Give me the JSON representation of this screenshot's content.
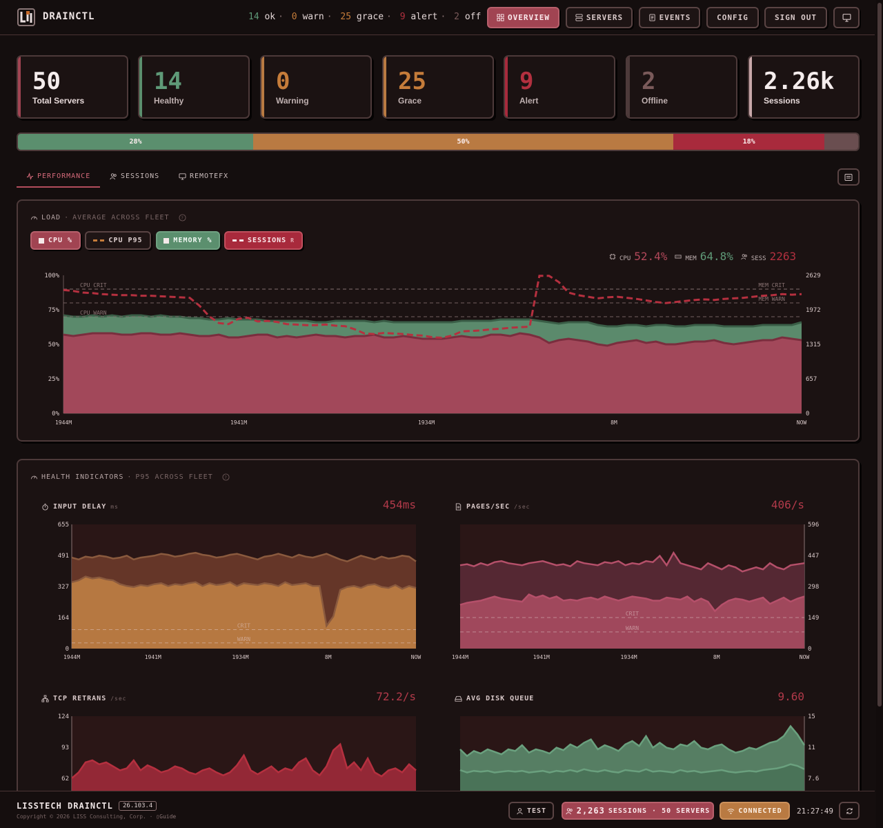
{
  "app": {
    "brand": "DRAINCTL"
  },
  "header": {
    "status": {
      "ok_count": "14",
      "ok_label": "ok",
      "warn_count": "0",
      "warn_label": "warn",
      "grace_count": "25",
      "grace_label": "grace",
      "alert_count": "9",
      "alert_label": "alert",
      "off_count": "2",
      "off_label": "off"
    },
    "nav": {
      "overview": "OVERVIEW",
      "servers": "SERVERS",
      "events": "EVENTS",
      "config": "CONFIG",
      "signout": "SIGN OUT"
    }
  },
  "stats": [
    {
      "value": "50",
      "label": "Total Servers"
    },
    {
      "value": "14",
      "label": "Healthy"
    },
    {
      "value": "0",
      "label": "Warning"
    },
    {
      "value": "25",
      "label": "Grace"
    },
    {
      "value": "9",
      "label": "Alert"
    },
    {
      "value": "2",
      "label": "Offline"
    },
    {
      "value": "2.26k",
      "label": "Sessions"
    }
  ],
  "distribution": [
    {
      "label": "28%",
      "fraction": 0.28,
      "color": "#5b8f6e"
    },
    {
      "label": "50%",
      "fraction": 0.5,
      "color": "#b97a42"
    },
    {
      "label": "18%",
      "fraction": 0.18,
      "color": "#a82a3c"
    },
    {
      "label": "",
      "fraction": 0.04,
      "color": "#6a4e50"
    }
  ],
  "tabs": {
    "performance": "PERFORMANCE",
    "sessions": "SESSIONS",
    "remotefx": "REMOTEFX"
  },
  "load_panel": {
    "title": "LOAD",
    "subtitle": "AVERAGE ACROSS FLEET",
    "chips": {
      "cpu": "CPU %",
      "cpu_p95": "CPU P95",
      "memory": "MEMORY %",
      "sessions": "SESSIONS",
      "sessions_suffix": "R"
    },
    "readout": {
      "cpu_label": "CPU",
      "cpu_value": "52.4%",
      "mem_label": "MEM",
      "mem_value": "64.8%",
      "sess_label": "SESS",
      "sess_value": "2263"
    },
    "threshold_labels": {
      "cpu_crit": "CPU CRIT",
      "cpu_warn": "CPU WARN",
      "mem_crit": "MEM CRIT",
      "mem_warn": "MEM WARN"
    }
  },
  "health_panel": {
    "title": "HEALTH INDICATORS",
    "subtitle": "P95 ACROSS FLEET"
  },
  "minis": {
    "input_delay": {
      "title": "INPUT DELAY",
      "unit": "ms",
      "value": "454ms"
    },
    "pages": {
      "title": "PAGES/SEC",
      "unit": "/sec",
      "value": "406/s"
    },
    "tcp": {
      "title": "TCP RETRANS",
      "unit": "/sec",
      "value": "72.2/s"
    },
    "disk": {
      "title": "AVG DISK QUEUE",
      "unit": "",
      "value": "9.60"
    }
  },
  "chart_data": [
    {
      "type": "area",
      "name": "load",
      "x_ticks": [
        "1944M",
        "1941M",
        "1934M",
        "8M",
        "NOW"
      ],
      "y_left_ticks": [
        "100%",
        "75%",
        "50%",
        "25%",
        "0%"
      ],
      "y_right_ticks": [
        "2629",
        "1972",
        "1315",
        "657",
        "0"
      ],
      "ylim_left": [
        0,
        100
      ],
      "ylim_right": [
        0,
        2629
      ],
      "thresholds": {
        "cpu_crit": 90,
        "cpu_warn": 70,
        "mem_crit": 90,
        "mem_warn": 80
      },
      "series": [
        {
          "name": "CPU %",
          "axis": "left",
          "color": "#a2485a",
          "values": [
            57,
            56,
            57,
            58,
            58,
            58,
            57,
            57,
            58,
            58,
            57,
            57,
            58,
            57,
            56,
            56,
            57,
            55,
            55,
            56,
            57,
            57,
            55,
            56,
            55,
            56,
            57,
            56,
            56,
            55,
            56,
            56,
            57,
            55,
            55,
            56,
            55,
            54,
            54,
            54,
            55,
            56,
            55,
            55,
            57,
            57,
            56,
            58,
            57,
            55,
            51,
            53,
            54,
            53,
            52,
            50,
            49,
            51,
            52,
            53,
            51,
            52,
            50,
            50,
            51,
            52,
            52,
            53,
            51,
            50,
            51,
            52,
            53,
            53,
            55,
            54,
            53
          ]
        },
        {
          "name": "MEMORY %",
          "axis": "left",
          "color": "#5b8a6c",
          "values": [
            70,
            69,
            69,
            70,
            69,
            70,
            69,
            70,
            70,
            69,
            70,
            69,
            69,
            68,
            68,
            66,
            66,
            68,
            67,
            67,
            67,
            66,
            66,
            66,
            66,
            66,
            65,
            65,
            66,
            66,
            66,
            66,
            65,
            66,
            65,
            65,
            65,
            65,
            65,
            65,
            65,
            66,
            66,
            66,
            66,
            67,
            67,
            67,
            67,
            66,
            64,
            64,
            65,
            65,
            65,
            64,
            63,
            63,
            64,
            64,
            63,
            64,
            64,
            63,
            63,
            64,
            64,
            64,
            63,
            63,
            63,
            63,
            64,
            64,
            64,
            64,
            66
          ]
        },
        {
          "name": "CPU P95",
          "axis": "left",
          "color": "#3d5f48",
          "values": [
            71,
            70,
            70,
            71,
            70,
            71,
            70,
            71,
            71,
            70,
            71,
            70,
            70,
            69,
            69,
            68,
            68,
            69,
            68,
            68,
            68,
            67,
            67,
            67,
            67,
            67,
            66,
            66,
            67,
            67,
            67,
            67,
            66,
            67,
            66,
            66,
            66,
            66,
            66,
            66,
            66,
            67,
            67,
            67,
            67,
            68,
            68,
            68,
            68,
            67,
            66,
            65,
            66,
            66,
            66,
            64,
            63,
            63,
            64,
            64,
            63,
            64,
            64,
            63,
            63,
            64,
            64,
            64,
            63,
            63,
            63,
            63,
            64,
            64,
            64,
            64,
            66
          ]
        },
        {
          "name": "SESSIONS",
          "axis": "right",
          "color": "#b5303f",
          "values": [
            2350,
            2330,
            2300,
            2290,
            2270,
            2260,
            2250,
            2250,
            2240,
            2240,
            2230,
            2220,
            2210,
            2200,
            2050,
            1850,
            1720,
            1700,
            1800,
            1820,
            1750,
            1760,
            1740,
            1700,
            1690,
            1680,
            1680,
            1690,
            1670,
            1660,
            1600,
            1520,
            1510,
            1530,
            1520,
            1510,
            1490,
            1480,
            1450,
            1440,
            1480,
            1560,
            1570,
            1580,
            1600,
            1610,
            1630,
            1640,
            1650,
            2620,
            2620,
            2500,
            2300,
            2250,
            2220,
            2190,
            2210,
            2220,
            2200,
            2180,
            2150,
            2120,
            2100,
            2120,
            2140,
            2160,
            2170,
            2160,
            2180,
            2190,
            2200,
            2220,
            2240,
            2250,
            2270,
            2260,
            2270
          ]
        }
      ]
    },
    {
      "type": "area",
      "name": "input_delay",
      "x_ticks": [
        "1944M",
        "1941M",
        "1934M",
        "8M",
        "NOW"
      ],
      "y_ticks": [
        "655",
        "491",
        "327",
        "164",
        "0"
      ],
      "ylim": [
        0,
        655
      ],
      "thresholds": {
        "crit": 100,
        "warn": 30
      },
      "threshold_labels": {
        "crit": "CRIT",
        "warn": "WARN"
      },
      "series": [
        {
          "name": "p95",
          "color": "#6b3a2a",
          "values": [
            480,
            470,
            485,
            480,
            490,
            485,
            475,
            480,
            490,
            470,
            480,
            485,
            490,
            500,
            495,
            485,
            490,
            500,
            505,
            495,
            490,
            480,
            485,
            495,
            500,
            490,
            480,
            470,
            485,
            490,
            500,
            490,
            480,
            495,
            485,
            480,
            490,
            500,
            485,
            470,
            460,
            475,
            490,
            480,
            470,
            485,
            475,
            480,
            490,
            485,
            460
          ]
        },
        {
          "name": "avg",
          "color": "#b67841",
          "values": [
            350,
            360,
            380,
            370,
            375,
            365,
            360,
            340,
            330,
            325,
            335,
            330,
            340,
            345,
            330,
            340,
            335,
            345,
            350,
            330,
            345,
            335,
            340,
            350,
            330,
            345,
            340,
            335,
            345,
            340,
            330,
            350,
            335,
            340,
            345,
            330,
            330,
            120,
            170,
            310,
            325,
            330,
            320,
            335,
            340,
            325,
            320,
            335,
            315,
            330,
            320
          ]
        }
      ]
    },
    {
      "type": "area",
      "name": "pages",
      "x_ticks": [
        "1944M",
        "1941M",
        "1934M",
        "8M",
        "NOW"
      ],
      "y_ticks": [
        "596",
        "447",
        "298",
        "149",
        "0"
      ],
      "ylim": [
        0,
        596
      ],
      "thresholds": {
        "crit": 149,
        "warn": 80
      },
      "threshold_labels": {
        "crit": "CRIT",
        "warn": "WARN"
      },
      "series": [
        {
          "name": "p95",
          "color": "#5a2a36",
          "values": [
            400,
            405,
            395,
            410,
            400,
            415,
            420,
            410,
            405,
            400,
            410,
            415,
            420,
            410,
            400,
            405,
            395,
            420,
            410,
            405,
            400,
            415,
            410,
            420,
            400,
            410,
            405,
            420,
            415,
            445,
            400,
            460,
            410,
            400,
            390,
            380,
            410,
            395,
            380,
            400,
            390,
            370,
            380,
            390,
            380,
            410,
            390,
            380,
            400,
            405,
            410
          ]
        },
        {
          "name": "avg",
          "color": "#a0485c",
          "values": [
            210,
            220,
            225,
            230,
            240,
            250,
            240,
            235,
            230,
            225,
            260,
            245,
            255,
            240,
            250,
            230,
            235,
            230,
            240,
            245,
            235,
            250,
            240,
            230,
            240,
            250,
            245,
            240,
            230,
            230,
            245,
            240,
            235,
            250,
            225,
            240,
            225,
            180,
            210,
            230,
            240,
            235,
            225,
            235,
            245,
            215,
            230,
            245,
            225,
            240,
            250
          ]
        }
      ]
    },
    {
      "type": "area",
      "name": "tcp",
      "y_ticks": [
        "124",
        "93",
        "62"
      ],
      "ylim": [
        0,
        124
      ],
      "series": [
        {
          "name": "value",
          "color": "#9e2a3a",
          "values": [
            62,
            68,
            78,
            80,
            76,
            78,
            74,
            70,
            72,
            80,
            70,
            75,
            72,
            68,
            70,
            74,
            72,
            68,
            66,
            70,
            72,
            68,
            65,
            68,
            75,
            85,
            70,
            66,
            70,
            74,
            68,
            72,
            70,
            78,
            82,
            70,
            65,
            74,
            90,
            96,
            72,
            78,
            70,
            82,
            68,
            64,
            70,
            72,
            68,
            76,
            70
          ]
        }
      ]
    },
    {
      "type": "area",
      "name": "disk",
      "y_ticks": [
        "15",
        "11",
        "7.6"
      ],
      "ylim": [
        0,
        15
      ],
      "series": [
        {
          "name": "p95",
          "color": "#5b8a6c",
          "values": [
            11,
            10.2,
            10.8,
            10.5,
            11,
            10.7,
            10.4,
            11,
            10.8,
            11.5,
            10.6,
            11,
            10.8,
            10.5,
            11.2,
            10.9,
            11.6,
            11.2,
            11.8,
            12.2,
            11,
            11.5,
            11.2,
            10.8,
            11.6,
            12,
            11.4,
            12.6,
            11.2,
            11.8,
            11.2,
            11,
            11.6,
            11.4,
            12,
            11.2,
            11,
            11.4,
            11.6,
            11,
            10.6,
            10.8,
            11.2,
            11,
            11.4,
            11.8,
            12,
            12.6,
            13.8,
            12.8,
            11.5
          ]
        },
        {
          "name": "avg",
          "color": "#4a7358",
          "values": [
            8.5,
            8.2,
            8.4,
            8.3,
            8.4,
            8.2,
            8.3,
            8.4,
            8.3,
            8.4,
            8.2,
            8.3,
            8.4,
            8.2,
            8.4,
            8.3,
            8.5,
            8.3,
            8.6,
            8.4,
            8.3,
            8.5,
            8.3,
            8.2,
            8.5,
            8.4,
            8.3,
            8.6,
            8.3,
            8.4,
            8.3,
            8.2,
            8.5,
            8.3,
            8.4,
            8.2,
            8.3,
            8.4,
            8.5,
            8.3,
            8.2,
            8.3,
            8.4,
            8.3,
            8.5,
            8.6,
            8.7,
            8.9,
            9.2,
            9.0,
            8.6
          ]
        }
      ]
    }
  ],
  "footer": {
    "brand": "LISSTECH DRAINCTL",
    "version": "26.103.4",
    "copyright": "Copyright © 2026 LISS Consulting, Corp. ·",
    "guide": "Guide",
    "test": "TEST",
    "sessions_count": "2,263",
    "sessions_text": "SESSIONS · 50 SERVERS",
    "connected": "CONNECTED",
    "time": "21:27:49"
  },
  "colors": {
    "accent": "#a14452",
    "ok": "#5b8f6e",
    "grace": "#b97a42",
    "alert": "#a82a3c"
  }
}
